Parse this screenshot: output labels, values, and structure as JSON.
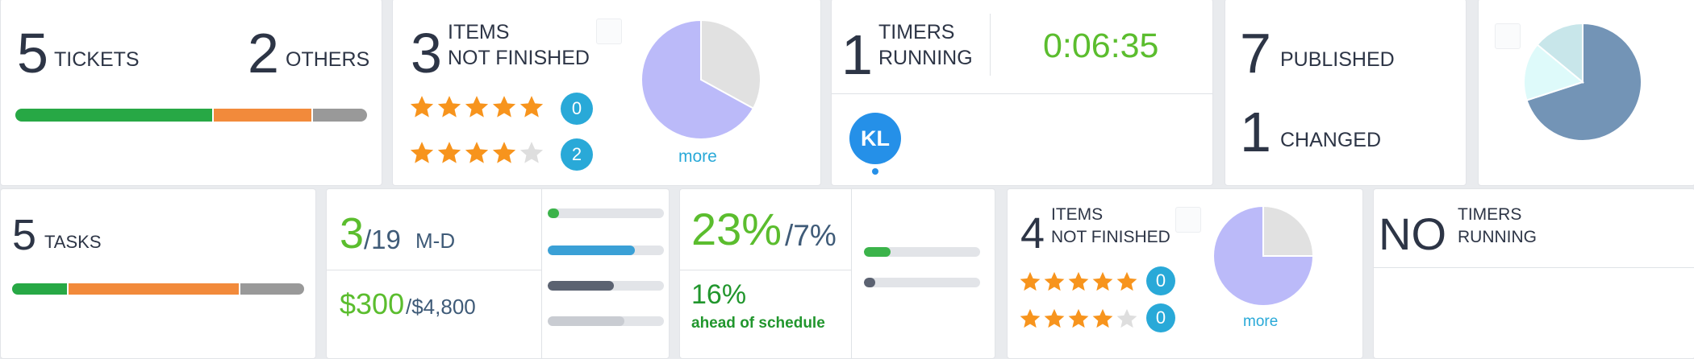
{
  "tickets_card": {
    "tickets_count": "5",
    "tickets_label": "TICKETS",
    "others_count": "2",
    "others_label": "OTHERS",
    "progress": [
      {
        "name": "done",
        "fraction": 0.565,
        "color": "#27a845"
      },
      {
        "name": "in-progress",
        "fraction": 0.28,
        "color": "#f28a3b"
      },
      {
        "name": "other",
        "fraction": 0.155,
        "color": "#999999"
      }
    ]
  },
  "items_card_1": {
    "count": "3",
    "label_line1": "ITEMS",
    "label_line2": "NOT FINISHED",
    "rating_5_count": "0",
    "rating_4_count": "2",
    "pie": [
      {
        "name": "not-finished",
        "fraction": 0.67,
        "color": "#bbbaf9"
      },
      {
        "name": "finished",
        "fraction": 0.33,
        "color": "#e1e1e1"
      }
    ],
    "more_label": "more"
  },
  "timers_card": {
    "count": "1",
    "label_line1": "TIMERS",
    "label_line2": "RUNNING",
    "elapsed": "0:06:35",
    "elapsed_color": "#5bbd2e",
    "avatar_initials": "KL",
    "avatar_color": "#2590e8"
  },
  "published_card": {
    "published_count": "7",
    "published_label": "PUBLISHED",
    "changed_count": "1",
    "changed_label": "CHANGED"
  },
  "mini_pie_card": {
    "pie": [
      {
        "name": "a",
        "fraction": 0.7,
        "color": "#7394b6"
      },
      {
        "name": "b",
        "fraction": 0.16,
        "color": "#defafa"
      },
      {
        "name": "c",
        "fraction": 0.14,
        "color": "#c8e6ea"
      }
    ]
  },
  "tasks_card": {
    "count": "5",
    "label": "TASKS",
    "progress": [
      {
        "name": "done",
        "fraction": 0.19,
        "color": "#27a845"
      },
      {
        "name": "in-progress",
        "fraction": 0.59,
        "color": "#f28a3b"
      },
      {
        "name": "other",
        "fraction": 0.22,
        "color": "#999999"
      }
    ]
  },
  "budget_card": {
    "md_used": "3",
    "md_total": "/19",
    "md_unit": "M-D",
    "money_used": "$300",
    "money_total": "/$4,800",
    "bars": [
      {
        "name": "bar1",
        "fraction": 0.1,
        "color": "#3bb34a"
      },
      {
        "name": "bar2",
        "fraction": 0.75,
        "color": "#3aa0d6"
      },
      {
        "name": "bar3",
        "fraction": 0.57,
        "color": "#5b6271"
      },
      {
        "name": "bar4",
        "fraction": 0.66,
        "color": "#c9ccd2"
      }
    ]
  },
  "schedule_card": {
    "percent_main": "23%",
    "percent_secondary": "/7%",
    "ahead_value": "16%",
    "ahead_label": "ahead of schedule",
    "bars": [
      {
        "name": "bar1",
        "fraction": 0.23,
        "color": "#3bb34a"
      },
      {
        "name": "bar2",
        "fraction": 0.1,
        "color": "#5b6271"
      }
    ]
  },
  "items_card_2": {
    "count": "4",
    "label_line1": "ITEMS",
    "label_line2": "NOT FINISHED",
    "rating_5_count": "0",
    "rating_4_count": "0",
    "pie": [
      {
        "name": "not-finished",
        "fraction": 0.75,
        "color": "#bbbaf9"
      },
      {
        "name": "finished",
        "fraction": 0.25,
        "color": "#e1e1e1"
      }
    ],
    "more_label": "more"
  },
  "no_timers_card": {
    "count": "NO",
    "label_line1": "TIMERS",
    "label_line2": "RUNNING"
  }
}
